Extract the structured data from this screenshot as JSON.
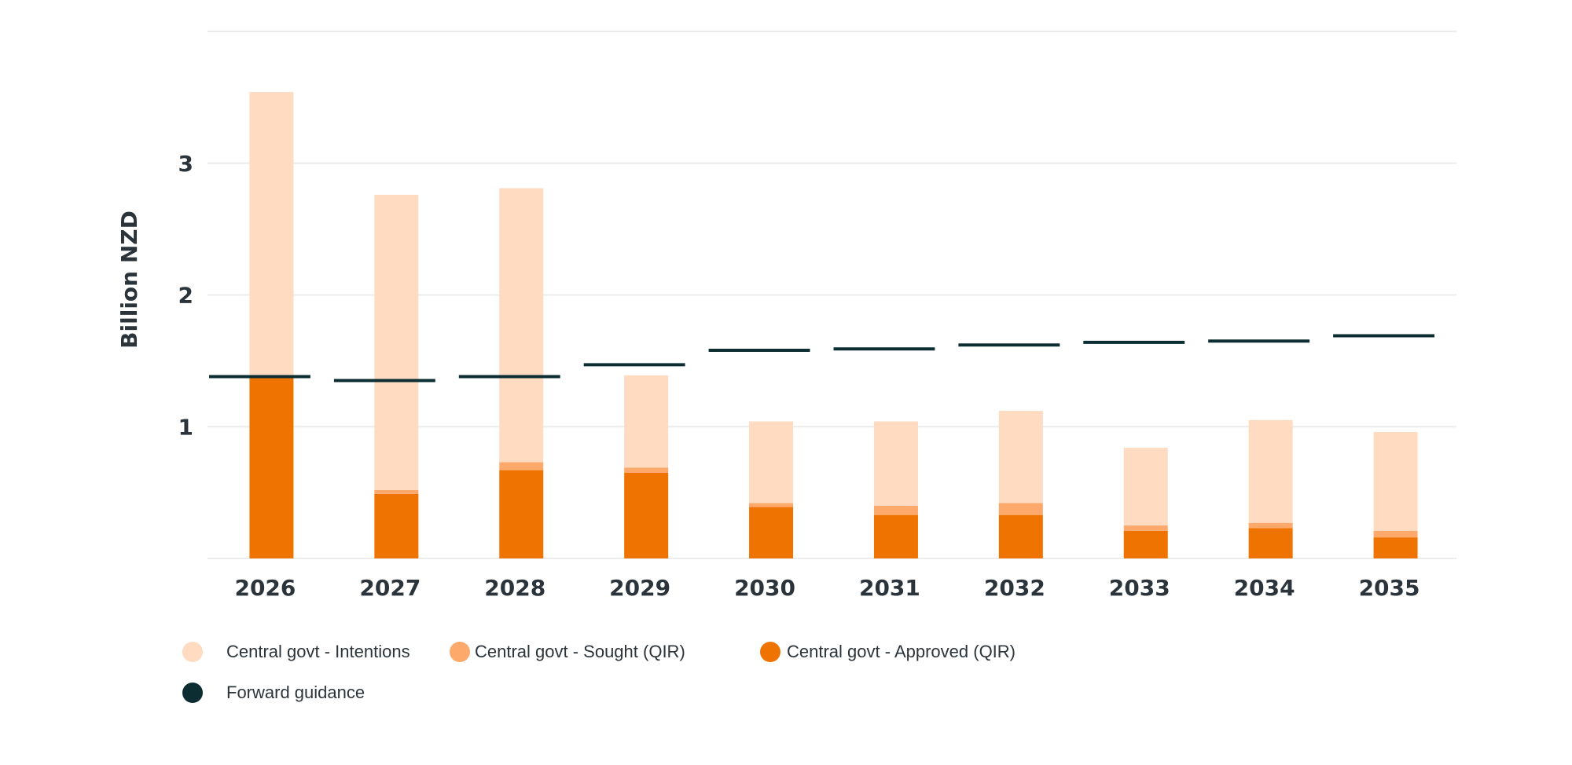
{
  "chart_data": {
    "type": "bar",
    "stacked": true,
    "title": "",
    "xlabel": "",
    "ylabel": "Billion NZD",
    "ylim": [
      0,
      4
    ],
    "yticks": [
      1,
      2,
      3
    ],
    "grid": true,
    "legend_position": "bottom-left",
    "categories": [
      "2026",
      "2027",
      "2028",
      "2029",
      "2030",
      "2031",
      "2032",
      "2033",
      "2034",
      "2035"
    ],
    "series": [
      {
        "name": "Central govt - Approved (QIR)",
        "kind": "bar",
        "color": "#ef7300",
        "values": [
          1.39,
          0.49,
          0.67,
          0.65,
          0.39,
          0.33,
          0.33,
          0.21,
          0.23,
          0.16
        ]
      },
      {
        "name": "Central govt - Sought (QIR)",
        "kind": "bar",
        "color": "#fca96b",
        "values": [
          0.0,
          0.03,
          0.06,
          0.04,
          0.03,
          0.07,
          0.09,
          0.04,
          0.04,
          0.05
        ]
      },
      {
        "name": "Central govt - Intentions",
        "kind": "bar",
        "color": "#fedbc1",
        "values": [
          2.15,
          2.24,
          2.08,
          0.7,
          0.62,
          0.64,
          0.7,
          0.59,
          0.78,
          0.75
        ]
      },
      {
        "name": "Forward guidance",
        "kind": "level",
        "color": "#0c2e33",
        "values": [
          1.38,
          1.35,
          1.38,
          1.47,
          1.58,
          1.59,
          1.62,
          1.64,
          1.65,
          1.69
        ]
      }
    ],
    "legend": [
      {
        "label": "Central govt - Intentions",
        "color": "#fedbc1"
      },
      {
        "label": "Central govt - Sought (QIR)",
        "color": "#fca96b"
      },
      {
        "label": "Central govt - Approved (QIR)",
        "color": "#ef7300"
      },
      {
        "label": "Forward guidance",
        "color": "#0c2e33"
      }
    ]
  },
  "colors": {
    "grid": "#ececec",
    "text": "#2b343b"
  }
}
